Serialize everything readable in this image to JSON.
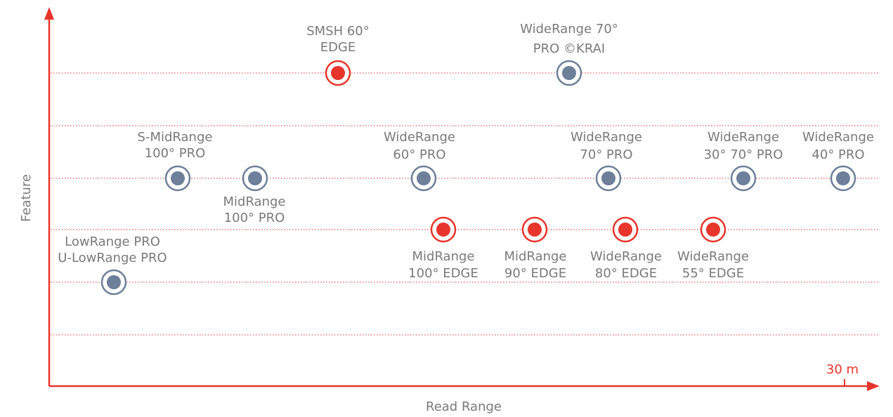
{
  "axes": {
    "x_label": "Read Range",
    "y_label": "Feature",
    "x_marker": "30 m"
  },
  "nodes": [
    {
      "lines": [
        "SMSH 60°",
        "EDGE"
      ]
    },
    {
      "lines": [
        "WideRange 70°",
        "PRO ©KRAI"
      ]
    },
    {
      "lines": [
        "S-MidRange",
        "100° PRO"
      ]
    },
    {
      "lines": [
        "MidRange",
        "100° PRO"
      ]
    },
    {
      "lines": [
        "WideRange",
        "60° PRO"
      ]
    },
    {
      "lines": [
        "WideRange",
        "70° PRO"
      ]
    },
    {
      "lines": [
        "WideRange",
        "30° 70° PRO"
      ]
    },
    {
      "lines": [
        "WideRange",
        "40° PRO"
      ]
    },
    {
      "lines": [
        "MidRange",
        "100° EDGE"
      ]
    },
    {
      "lines": [
        "MidRange",
        "90° EDGE"
      ]
    },
    {
      "lines": [
        "WideRange",
        "80° EDGE"
      ]
    },
    {
      "lines": [
        "WideRange",
        "55° EDGE"
      ]
    },
    {
      "lines": [
        "LowRange PRO",
        "U-LowRange PRO"
      ]
    }
  ]
}
